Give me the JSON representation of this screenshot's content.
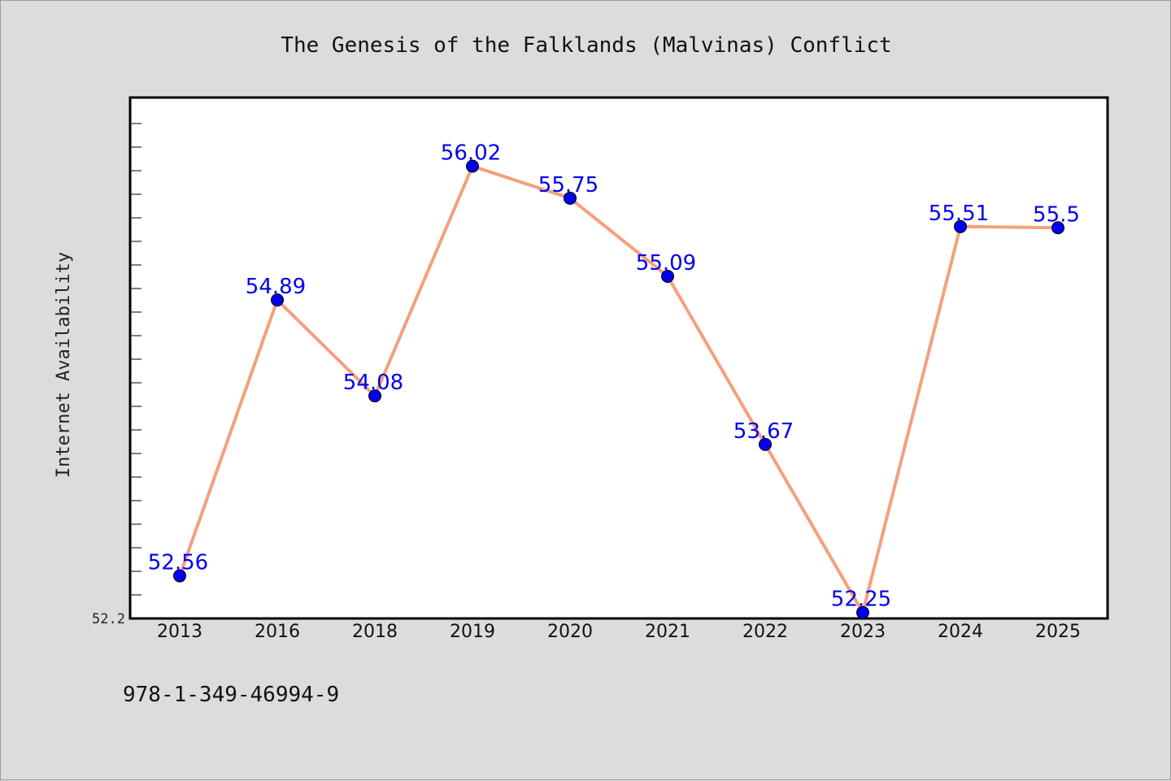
{
  "chart_data": {
    "type": "line",
    "title": "The Genesis of the Falklands (Malvinas) Conflict",
    "xlabel": "",
    "ylabel": "Internet Availability",
    "categories": [
      "2013",
      "2016",
      "2018",
      "2019",
      "2020",
      "2021",
      "2022",
      "2023",
      "2024",
      "2025"
    ],
    "series": [
      {
        "values": [
          52.56,
          54.89,
          54.08,
          56.02,
          55.75,
          55.09,
          53.67,
          52.25,
          55.51,
          55.5
        ],
        "labels": [
          "52.56",
          "54.89",
          "54.08",
          "56.02",
          "55.75",
          "55.09",
          "53.67",
          "52.25",
          "55.51",
          "55.5"
        ]
      }
    ],
    "ylim": [
      52.2,
      56.6
    ],
    "y_tick_labels": [
      "52.2"
    ],
    "grid": false,
    "colors": {
      "line": "#f4a07c",
      "marker": "#0000ee",
      "label": "#0000ee",
      "background": "#dcdcdc",
      "plot_bg": "#ffffff"
    }
  },
  "footer": {
    "code": "978-1-349-46994-9"
  }
}
